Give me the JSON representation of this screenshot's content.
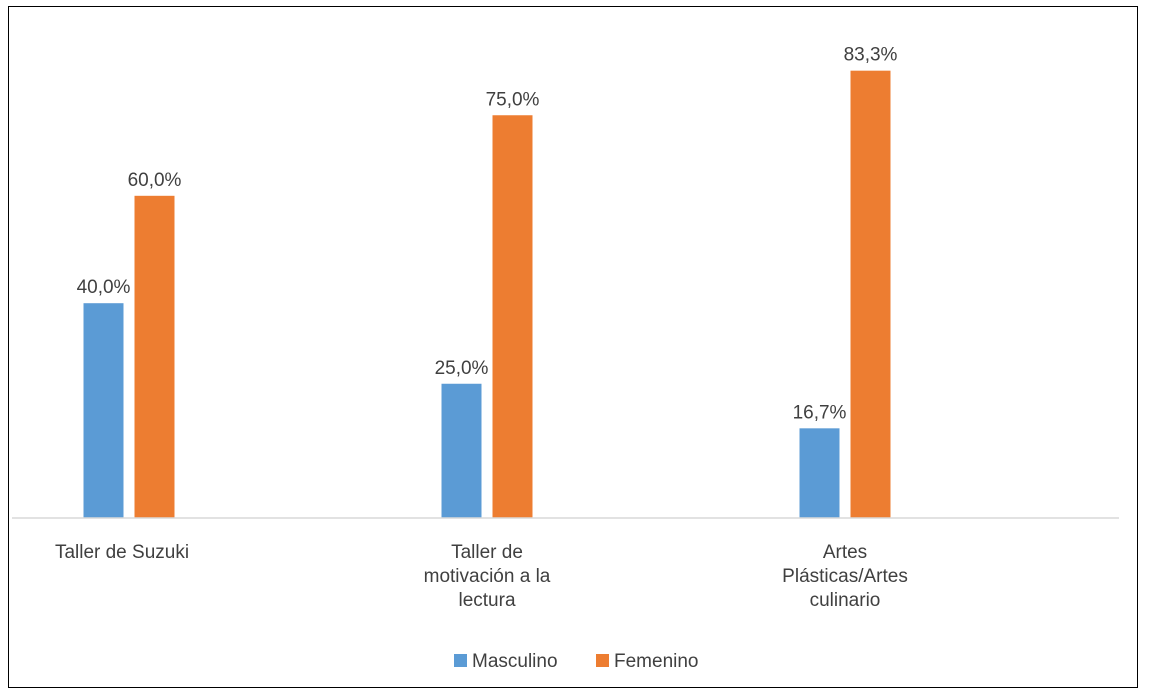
{
  "chart_data": {
    "type": "bar",
    "categories": [
      [
        "Taller de Suzuki"
      ],
      [
        "Taller de",
        "motivación a la",
        "lectura"
      ],
      [
        "Artes",
        "Plásticas/Artes",
        "culinario"
      ]
    ],
    "series": [
      {
        "name": "Masculino",
        "color": "#5B9BD5",
        "values": [
          40.0,
          25.0,
          16.7
        ],
        "labels": [
          "40,0%",
          "25,0%",
          "16,7%"
        ]
      },
      {
        "name": "Femenino",
        "color": "#ED7D31",
        "values": [
          60.0,
          75.0,
          83.3
        ],
        "labels": [
          "60,0%",
          "75,0%",
          "83,3%"
        ]
      }
    ],
    "ylim": [
      0,
      100
    ],
    "grid": false,
    "legend_position": "bottom",
    "title": "",
    "xlabel": "",
    "ylabel": ""
  }
}
